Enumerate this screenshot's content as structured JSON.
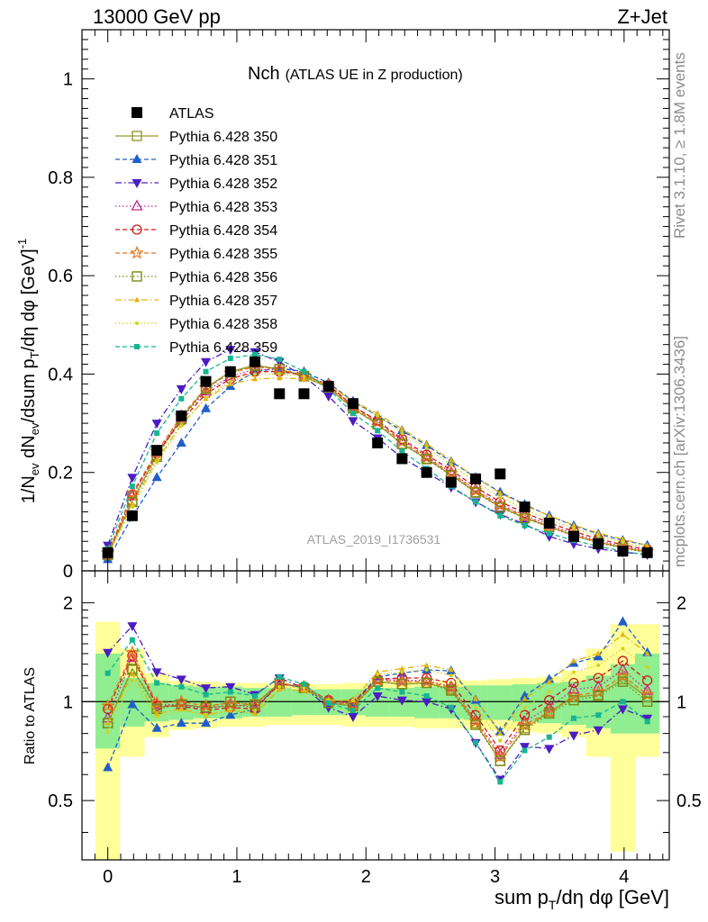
{
  "header": {
    "left": "13000 GeV pp",
    "right": "Z+Jet"
  },
  "side": {
    "rivet": "Rivet 3.1.10, ≥ 1.8M events",
    "mcplots": "mcplots.cern.ch [arXiv:1306.3436]"
  },
  "chart_data": [
    {
      "type": "scatter",
      "title": "Nch",
      "subtitle": "(ATLAS UE in Z production)",
      "watermark": "ATLAS_2019_I1736531",
      "ylabel": "1/N_ev dN_ev/dsum p_T/dη dφ [GeV]^-1",
      "xlim": [
        -0.2,
        4.35
      ],
      "ylim": [
        0,
        1.1
      ],
      "xticks": [
        "0",
        "1",
        "2",
        "3",
        "4"
      ],
      "yticks": [
        "0",
        "0.2",
        "0.4",
        "0.6",
        "0.8",
        "1"
      ],
      "x": [
        0.0,
        0.19,
        0.38,
        0.57,
        0.76,
        0.95,
        1.14,
        1.33,
        1.52,
        1.71,
        1.9,
        2.09,
        2.28,
        2.47,
        2.66,
        2.85,
        3.04,
        3.23,
        3.42,
        3.61,
        3.8,
        3.99,
        4.18
      ],
      "series": [
        {
          "name": "ATLAS",
          "color": "#000000",
          "marker": "filled-square",
          "dash": "none",
          "values": [
            0.037,
            0.112,
            0.245,
            0.315,
            0.385,
            0.405,
            0.425,
            0.36,
            0.36,
            0.375,
            0.34,
            0.26,
            0.228,
            0.2,
            0.18,
            0.187,
            0.197,
            0.13,
            0.097,
            0.07,
            0.055,
            0.04,
            0.037
          ]
        },
        {
          "name": "Pythia 6.428 350",
          "color": "#9a9a30",
          "marker": "open-square",
          "dash": "solid",
          "values": [
            0.033,
            0.143,
            0.235,
            0.31,
            0.372,
            0.405,
            0.418,
            0.41,
            0.395,
            0.372,
            0.33,
            0.298,
            0.258,
            0.228,
            0.195,
            0.16,
            0.13,
            0.108,
            0.09,
            0.072,
            0.058,
            0.047,
            0.038
          ]
        },
        {
          "name": "Pythia 6.428 351",
          "color": "#1f5fc8",
          "marker": "filled-triangle-up",
          "dash": "dashed",
          "values": [
            0.023,
            0.11,
            0.19,
            0.26,
            0.33,
            0.375,
            0.405,
            0.412,
            0.405,
            0.382,
            0.345,
            0.315,
            0.285,
            0.255,
            0.222,
            0.19,
            0.16,
            0.135,
            0.112,
            0.092,
            0.075,
            0.062,
            0.052
          ]
        },
        {
          "name": "Pythia 6.428 352",
          "color": "#4b1cc2",
          "marker": "filled-triangle-down",
          "dash": "dashdot",
          "values": [
            0.052,
            0.19,
            0.3,
            0.37,
            0.425,
            0.45,
            0.445,
            0.425,
            0.395,
            0.355,
            0.305,
            0.27,
            0.23,
            0.2,
            0.17,
            0.14,
            0.115,
            0.095,
            0.07,
            0.055,
            0.045,
            0.038,
            0.033
          ]
        },
        {
          "name": "Pythia 6.428 353",
          "color": "#c02a8c",
          "marker": "open-triangle-up",
          "dash": "dotted",
          "values": [
            0.033,
            0.152,
            0.24,
            0.31,
            0.365,
            0.395,
            0.41,
            0.408,
            0.398,
            0.378,
            0.335,
            0.305,
            0.265,
            0.232,
            0.2,
            0.165,
            0.135,
            0.113,
            0.093,
            0.076,
            0.061,
            0.05,
            0.04
          ]
        },
        {
          "name": "Pythia 6.428 354",
          "color": "#d01a1a",
          "marker": "open-circle",
          "dash": "dashed",
          "values": [
            0.035,
            0.155,
            0.238,
            0.305,
            0.36,
            0.39,
            0.405,
            0.405,
            0.398,
            0.378,
            0.335,
            0.305,
            0.268,
            0.236,
            0.205,
            0.17,
            0.14,
            0.118,
            0.098,
            0.08,
            0.065,
            0.053,
            0.043
          ]
        },
        {
          "name": "Pythia 6.428 355",
          "color": "#e8731c",
          "marker": "open-star",
          "dash": "dashed",
          "values": [
            0.036,
            0.158,
            0.242,
            0.315,
            0.372,
            0.402,
            0.415,
            0.41,
            0.398,
            0.375,
            0.332,
            0.302,
            0.262,
            0.23,
            0.198,
            0.163,
            0.133,
            0.11,
            0.09,
            0.073,
            0.059,
            0.048,
            0.039
          ]
        },
        {
          "name": "Pythia 6.428 356",
          "color": "#7a8a12",
          "marker": "open-square",
          "dash": "dotted",
          "values": [
            0.032,
            0.14,
            0.232,
            0.308,
            0.37,
            0.403,
            0.417,
            0.41,
            0.396,
            0.373,
            0.33,
            0.298,
            0.258,
            0.227,
            0.194,
            0.159,
            0.129,
            0.107,
            0.089,
            0.071,
            0.057,
            0.046,
            0.037
          ]
        },
        {
          "name": "Pythia 6.428 357",
          "color": "#e2b30e",
          "marker": "filled-triangle-up-small",
          "dash": "dashdot",
          "values": [
            0.032,
            0.135,
            0.225,
            0.298,
            0.35,
            0.38,
            0.39,
            0.392,
            0.39,
            0.378,
            0.345,
            0.32,
            0.288,
            0.258,
            0.225,
            0.19,
            0.158,
            0.133,
            0.112,
            0.093,
            0.077,
            0.064,
            0.052
          ]
        },
        {
          "name": "Pythia 6.428 358",
          "color": "#d2d21e",
          "marker": "dot",
          "dash": "dotted",
          "values": [
            0.03,
            0.13,
            0.22,
            0.295,
            0.352,
            0.385,
            0.4,
            0.4,
            0.395,
            0.38,
            0.342,
            0.315,
            0.28,
            0.25,
            0.216,
            0.18,
            0.15,
            0.125,
            0.104,
            0.086,
            0.071,
            0.058,
            0.047
          ]
        },
        {
          "name": "Pythia 6.428 359",
          "color": "#16b590",
          "marker": "filled-square-small",
          "dash": "dashed",
          "values": [
            0.045,
            0.172,
            0.28,
            0.35,
            0.405,
            0.432,
            0.44,
            0.43,
            0.405,
            0.37,
            0.32,
            0.285,
            0.243,
            0.208,
            0.172,
            0.14,
            0.112,
            0.092,
            0.076,
            0.062,
            0.05,
            0.04,
            0.032
          ]
        }
      ]
    },
    {
      "type": "line",
      "ylabel": "Ratio to ATLAS",
      "xlabel": "sum p_T/dη dφ [GeV]",
      "xlim": [
        -0.2,
        4.35
      ],
      "ylim": [
        0.33,
        2.5
      ],
      "yscale": "log",
      "xticks": [
        "0",
        "1",
        "2",
        "3",
        "4"
      ],
      "yticks": [
        "0.5",
        "1",
        "2"
      ],
      "reference": 1,
      "green_band": {
        "lo": [
          0.72,
          0.84,
          0.87,
          0.88,
          0.89,
          0.89,
          0.9,
          0.9,
          0.91,
          0.91,
          0.91,
          0.9,
          0.9,
          0.89,
          0.89,
          0.88,
          0.88,
          0.87,
          0.86,
          0.85,
          0.83,
          0.8,
          0.8
        ],
        "hi": [
          1.4,
          1.18,
          1.14,
          1.12,
          1.11,
          1.11,
          1.1,
          1.1,
          1.09,
          1.09,
          1.09,
          1.1,
          1.1,
          1.11,
          1.11,
          1.12,
          1.12,
          1.13,
          1.14,
          1.15,
          1.2,
          1.3,
          1.4
        ]
      },
      "yellow_band": {
        "lo": [
          0.33,
          0.68,
          0.78,
          0.82,
          0.83,
          0.84,
          0.84,
          0.85,
          0.85,
          0.85,
          0.84,
          0.84,
          0.84,
          0.83,
          0.83,
          0.82,
          0.82,
          0.81,
          0.8,
          0.78,
          0.68,
          0.35,
          0.68
        ],
        "hi": [
          1.75,
          1.45,
          1.22,
          1.16,
          1.15,
          1.14,
          1.14,
          1.13,
          1.13,
          1.13,
          1.14,
          1.14,
          1.15,
          1.15,
          1.16,
          1.16,
          1.17,
          1.18,
          1.19,
          1.24,
          1.45,
          1.72,
          1.72
        ]
      },
      "series": [
        {
          "name": "Pythia 6.428 350",
          "values": [
            0.86,
            1.26,
            0.96,
            0.98,
            0.96,
            0.97,
            0.98,
            1.14,
            1.1,
            0.99,
            0.97,
            1.15,
            1.13,
            1.14,
            1.09,
            0.86,
            0.66,
            0.83,
            0.93,
            1.03,
            1.05,
            1.17,
            1.03
          ]
        },
        {
          "name": "Pythia 6.428 351",
          "values": [
            0.63,
            0.98,
            0.83,
            0.86,
            0.86,
            0.91,
            0.95,
            1.14,
            1.1,
            0.99,
            0.99,
            1.19,
            1.22,
            1.25,
            1.24,
            1.01,
            0.81,
            1.04,
            1.17,
            1.31,
            1.37,
            1.75,
            1.41
          ]
        },
        {
          "name": "Pythia 6.428 352",
          "values": [
            1.41,
            1.7,
            1.23,
            1.17,
            1.1,
            1.11,
            1.05,
            1.18,
            1.1,
            0.96,
            0.9,
            1.04,
            1.01,
            1.0,
            0.95,
            0.75,
            0.58,
            0.73,
            0.72,
            0.79,
            0.82,
            0.95,
            0.89
          ]
        },
        {
          "name": "Pythia 6.428 353",
          "values": [
            0.89,
            1.36,
            0.98,
            0.98,
            0.95,
            0.98,
            0.96,
            1.13,
            1.11,
            1.01,
            0.99,
            1.17,
            1.16,
            1.16,
            1.11,
            0.88,
            0.69,
            0.87,
            0.96,
            1.09,
            1.11,
            1.25,
            1.08
          ]
        },
        {
          "name": "Pythia 6.428 354",
          "values": [
            0.95,
            1.38,
            0.97,
            0.97,
            0.94,
            0.96,
            0.95,
            1.13,
            1.11,
            1.01,
            0.99,
            1.17,
            1.18,
            1.18,
            1.14,
            0.91,
            0.71,
            0.91,
            1.01,
            1.14,
            1.18,
            1.33,
            1.16
          ]
        },
        {
          "name": "Pythia 6.428 355",
          "values": [
            0.97,
            1.41,
            0.99,
            1.0,
            0.97,
            0.99,
            0.98,
            1.14,
            1.11,
            1.0,
            0.98,
            1.16,
            1.15,
            1.15,
            1.1,
            0.87,
            0.68,
            0.85,
            0.93,
            1.04,
            1.07,
            1.2,
            1.05
          ]
        },
        {
          "name": "Pythia 6.428 356",
          "values": [
            0.86,
            1.25,
            0.95,
            0.98,
            0.96,
            1.0,
            0.98,
            1.14,
            1.1,
            0.99,
            0.97,
            1.15,
            1.13,
            1.14,
            1.08,
            0.85,
            0.66,
            0.82,
            0.92,
            1.01,
            1.04,
            1.15,
            1.0
          ]
        },
        {
          "name": "Pythia 6.428 357",
          "values": [
            0.86,
            1.21,
            0.92,
            0.95,
            0.91,
            0.94,
            0.92,
            1.09,
            1.08,
            1.01,
            1.01,
            1.23,
            1.26,
            1.29,
            1.25,
            1.02,
            0.8,
            1.02,
            1.15,
            1.33,
            1.4,
            1.6,
            1.4
          ]
        },
        {
          "name": "Pythia 6.428 358",
          "values": [
            0.81,
            1.16,
            0.9,
            0.94,
            0.91,
            0.95,
            0.94,
            1.11,
            1.1,
            1.01,
            1.01,
            1.21,
            1.23,
            1.25,
            1.2,
            0.96,
            0.76,
            0.96,
            1.07,
            1.23,
            1.29,
            1.45,
            1.27
          ]
        },
        {
          "name": "Pythia 6.428 359",
          "values": [
            1.22,
            1.54,
            1.14,
            1.11,
            1.05,
            1.07,
            1.04,
            1.19,
            1.13,
            0.99,
            0.94,
            1.1,
            1.07,
            1.04,
            0.96,
            0.75,
            0.57,
            0.71,
            0.78,
            0.89,
            0.91,
            1.0,
            0.87
          ]
        }
      ]
    }
  ]
}
